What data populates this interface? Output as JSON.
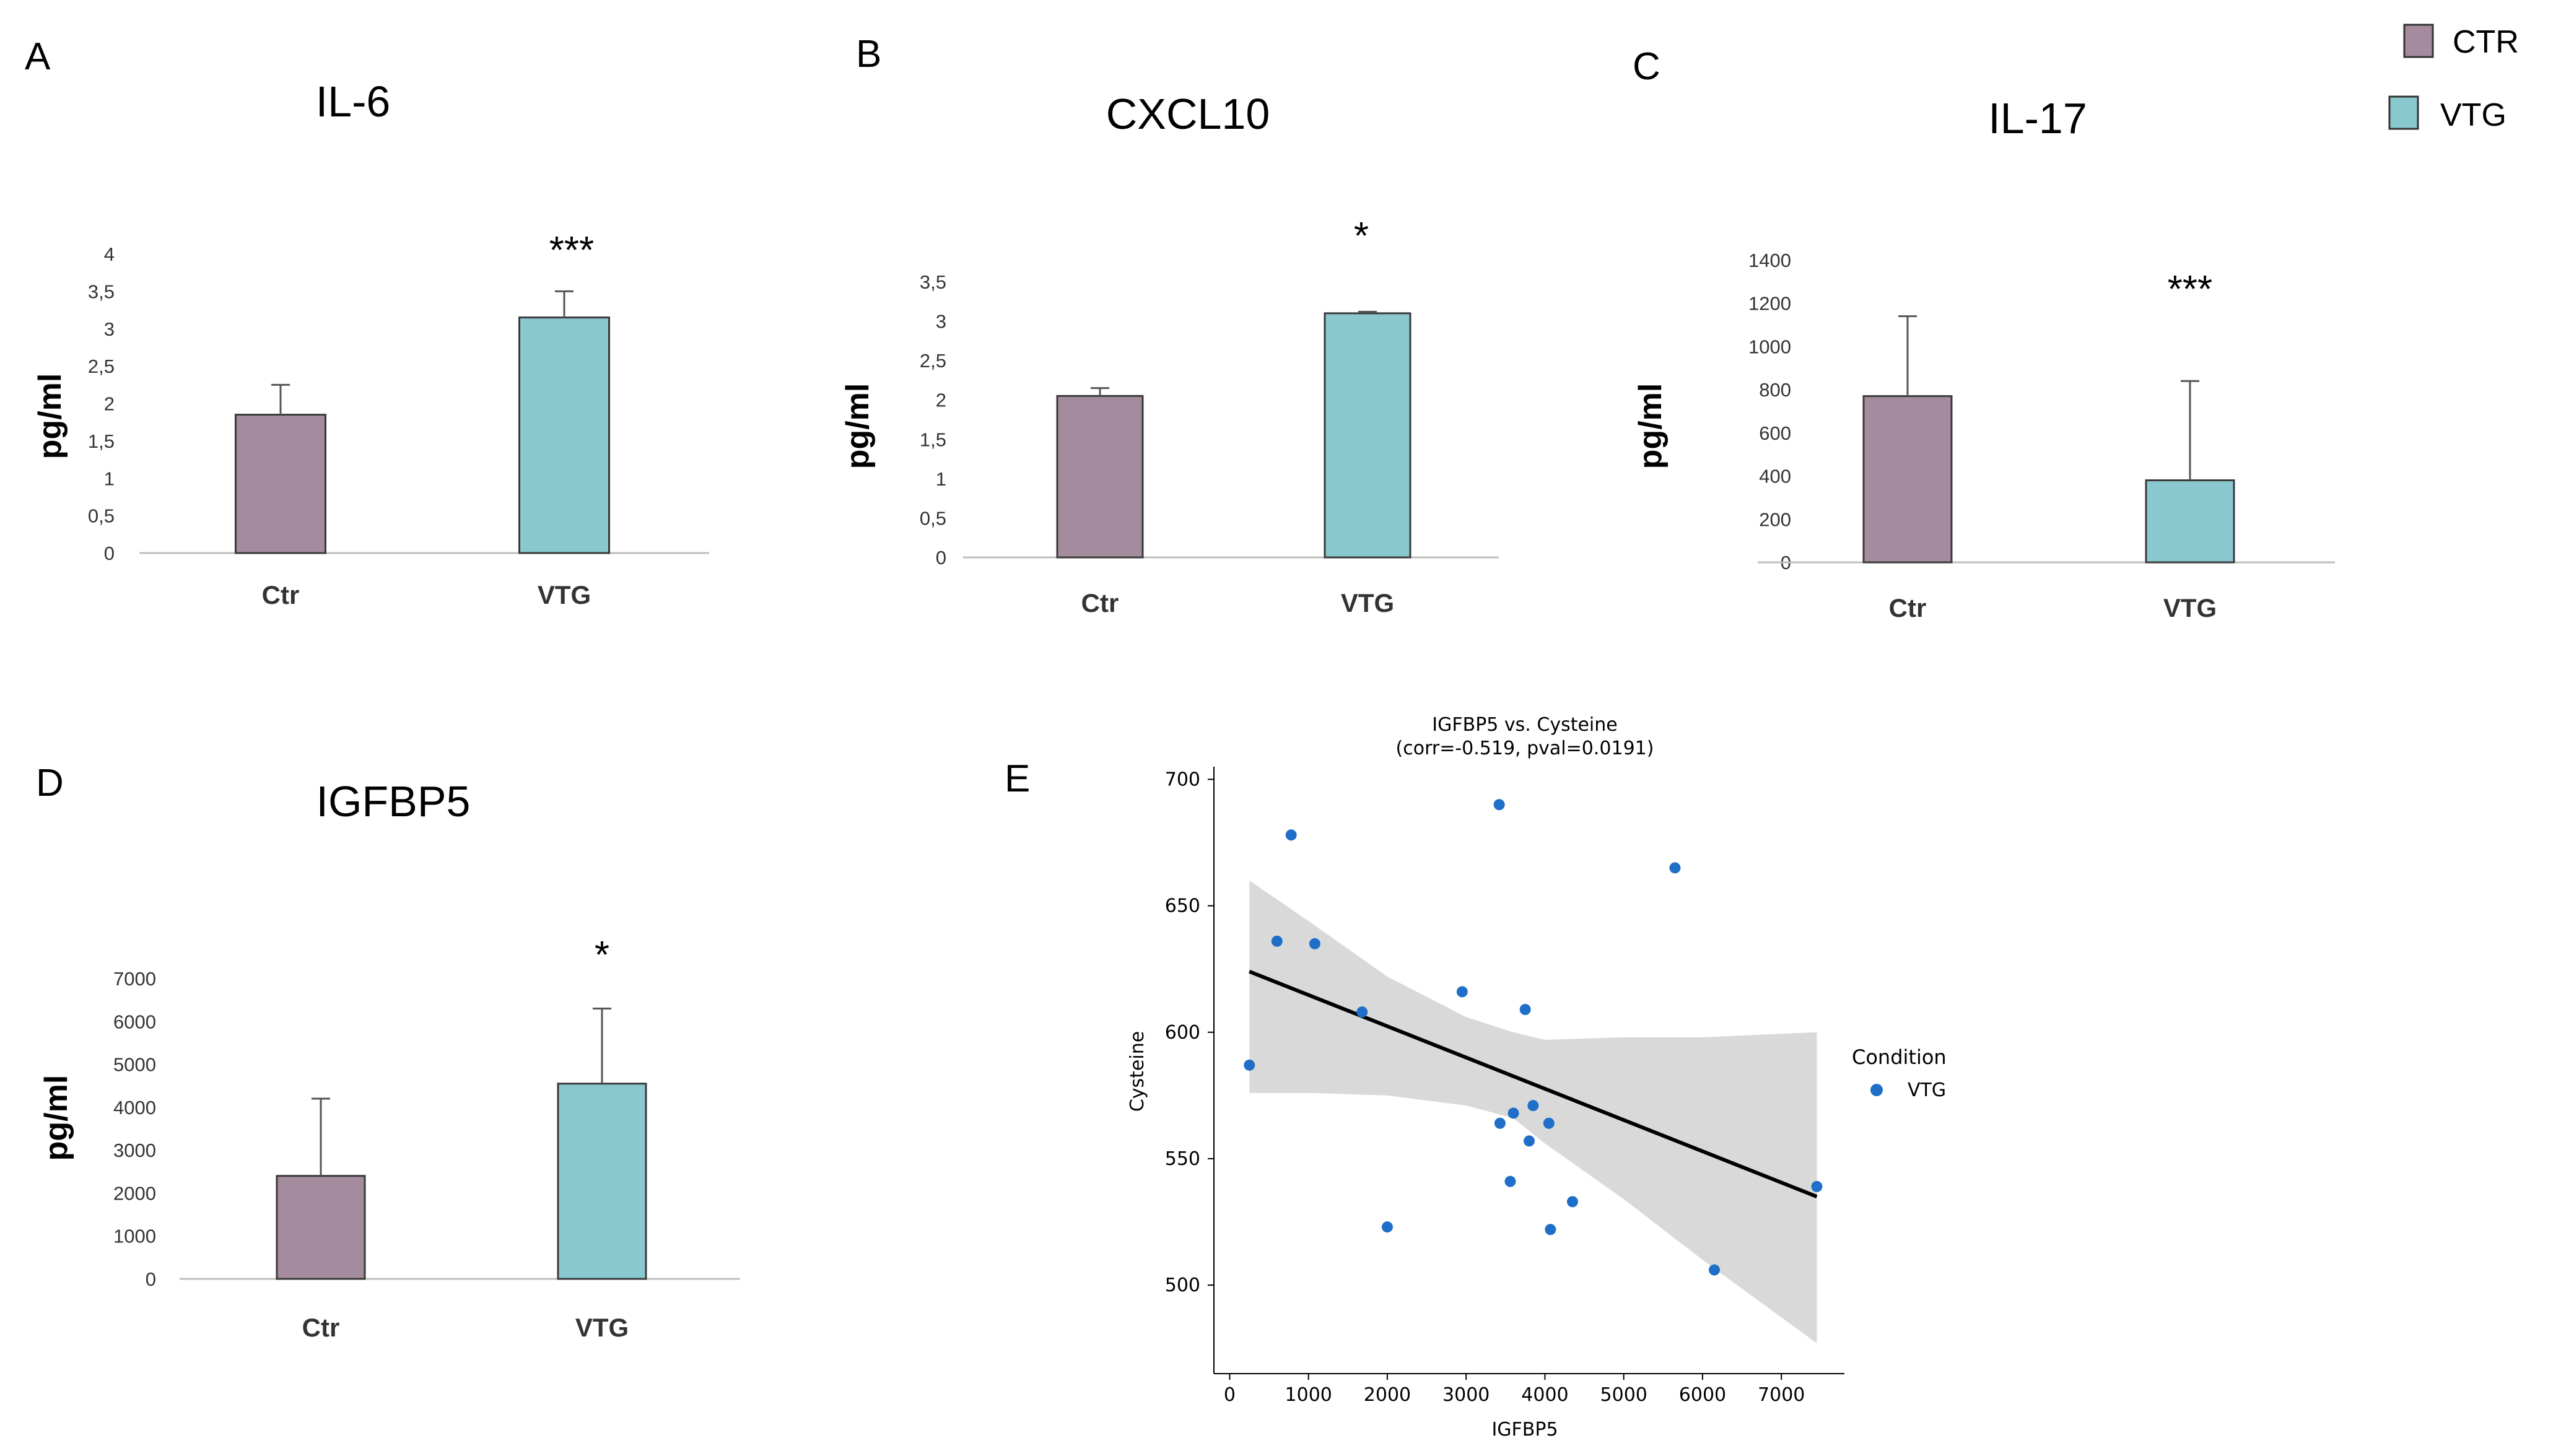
{
  "legend": {
    "items": [
      {
        "label": "CTR",
        "color": "#A48C9E"
      },
      {
        "label": "VTG",
        "color": "#89C8CF"
      }
    ]
  },
  "colors": {
    "ctr": "#A48C9E",
    "vtg": "#89C8CF",
    "point": "#1F6FC8",
    "band": "#D9D9D9",
    "line": "#000000"
  },
  "chart_data": [
    {
      "panel": "A",
      "type": "bar",
      "title": "IL-6",
      "ylabel": "pg/ml",
      "categories": [
        "Ctr",
        "VTG"
      ],
      "values": [
        1.85,
        3.15
      ],
      "errors": [
        0.4,
        0.35
      ],
      "ylim": [
        0,
        4
      ],
      "ticks": [
        0,
        0.5,
        1,
        1.5,
        2,
        2.5,
        3,
        3.5,
        4
      ],
      "tick_labels": [
        "0",
        "0,5",
        "1",
        "1,5",
        "2",
        "2,5",
        "3",
        "3,5",
        "4"
      ],
      "significance": "***"
    },
    {
      "panel": "B",
      "type": "bar",
      "title": "CXCL10",
      "ylabel": "pg/ml",
      "categories": [
        "Ctr",
        "VTG"
      ],
      "values": [
        2.05,
        3.1
      ],
      "errors": [
        0.1,
        0.02
      ],
      "ylim": [
        0,
        3.5
      ],
      "ticks": [
        0,
        0.5,
        1,
        1.5,
        2,
        2.5,
        3,
        3.5
      ],
      "tick_labels": [
        "0",
        "0,5",
        "1",
        "1,5",
        "2",
        "2,5",
        "3",
        "3,5"
      ],
      "significance": "*"
    },
    {
      "panel": "C",
      "type": "bar",
      "title": "IL-17",
      "ylabel": "pg/ml",
      "categories": [
        "Ctr",
        "VTG"
      ],
      "values": [
        770,
        380
      ],
      "errors": [
        370,
        460
      ],
      "ylim": [
        0,
        1400
      ],
      "ticks": [
        0,
        200,
        400,
        600,
        800,
        1000,
        1200,
        1400
      ],
      "tick_labels": [
        "0",
        "200",
        "400",
        "600",
        "800",
        "1000",
        "1200",
        "1400"
      ],
      "significance": "***"
    },
    {
      "panel": "D",
      "type": "bar",
      "title": "IGFBP5",
      "ylabel": "pg/ml",
      "categories": [
        "Ctr",
        "VTG"
      ],
      "values": [
        2400,
        4550
      ],
      "errors": [
        1800,
        1750
      ],
      "ylim": [
        0,
        7000
      ],
      "ticks": [
        0,
        1000,
        2000,
        3000,
        4000,
        5000,
        6000,
        7000
      ],
      "tick_labels": [
        "0",
        "1000",
        "2000",
        "3000",
        "4000",
        "5000",
        "6000",
        "7000"
      ],
      "significance": "*"
    },
    {
      "panel": "E",
      "type": "scatter",
      "title": "IGFBP5 vs. Cysteine",
      "subtitle": "(corr=-0.519, pval=0.0191)",
      "xlabel": "IGFBP5",
      "ylabel": "Cysteine",
      "xlim": [
        -200,
        7800
      ],
      "ylim": [
        465,
        705
      ],
      "xticks": [
        0,
        1000,
        2000,
        3000,
        4000,
        5000,
        6000,
        7000
      ],
      "yticks": [
        500,
        550,
        600,
        650,
        700
      ],
      "legend_title": "Condition",
      "legend_label": "VTG",
      "points": [
        {
          "x": 250,
          "y": 587
        },
        {
          "x": 600,
          "y": 636
        },
        {
          "x": 780,
          "y": 678
        },
        {
          "x": 1080,
          "y": 635
        },
        {
          "x": 1680,
          "y": 608
        },
        {
          "x": 2000,
          "y": 523
        },
        {
          "x": 2950,
          "y": 616
        },
        {
          "x": 3420,
          "y": 690
        },
        {
          "x": 3430,
          "y": 564
        },
        {
          "x": 3560,
          "y": 541
        },
        {
          "x": 3600,
          "y": 568
        },
        {
          "x": 3750,
          "y": 609
        },
        {
          "x": 3800,
          "y": 557
        },
        {
          "x": 3850,
          "y": 571
        },
        {
          "x": 4050,
          "y": 564
        },
        {
          "x": 4070,
          "y": 522
        },
        {
          "x": 4350,
          "y": 533
        },
        {
          "x": 5650,
          "y": 665
        },
        {
          "x": 6150,
          "y": 506
        },
        {
          "x": 7450,
          "y": 539
        }
      ],
      "regression": {
        "x": [
          250,
          7450
        ],
        "y": [
          624,
          535
        ]
      },
      "band": {
        "x": [
          250,
          1000,
          2000,
          3000,
          3600,
          4000,
          5000,
          6000,
          7450
        ],
        "lower": [
          576,
          576,
          575,
          571,
          566,
          556,
          534,
          510,
          477
        ],
        "upper": [
          660,
          644,
          622,
          606,
          600,
          597,
          598,
          598,
          600
        ]
      }
    }
  ]
}
